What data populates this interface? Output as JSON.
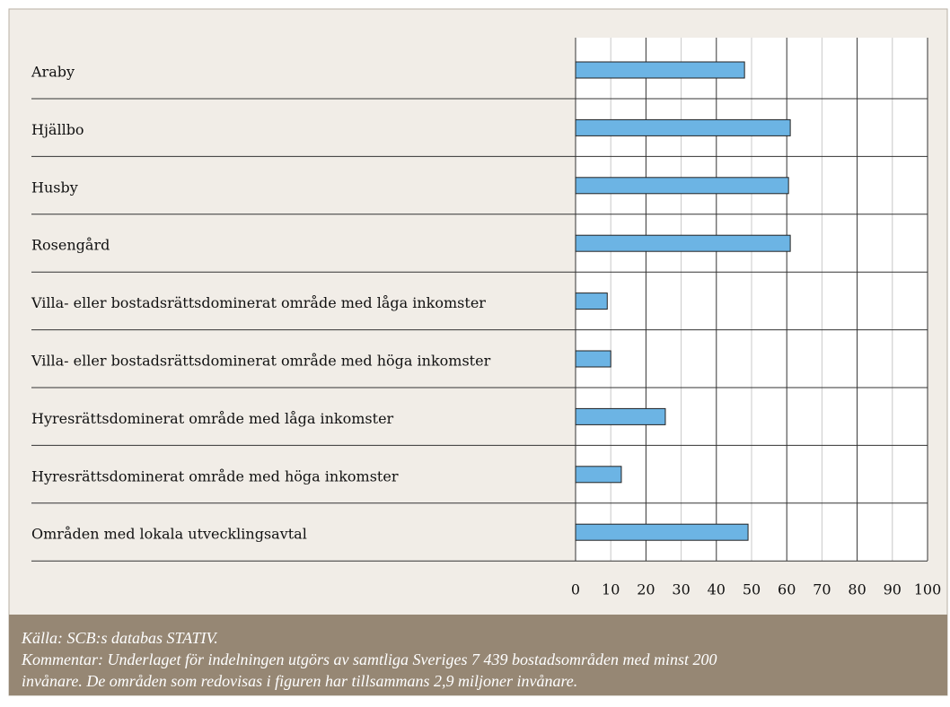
{
  "chart_data": {
    "type": "hbar",
    "categories": [
      "Araby",
      "Hjällbo",
      "Husby",
      "Rosengård",
      "Villa- eller bostadsrättsdominerat område med låga inkomster",
      "Villa- eller bostadsrättsdominerat område med höga inkomster",
      "Hyresrättsdominerat område med låga inkomster",
      "Hyresrättsdominerat område med höga inkomster",
      "Områden med lokala utvecklingsavtal"
    ],
    "values": [
      48,
      61,
      60.5,
      61,
      9,
      10,
      25.5,
      13,
      49
    ],
    "color": "#6cb4e4",
    "xlim": [
      0,
      100
    ],
    "xticks": [
      0,
      10,
      20,
      30,
      40,
      50,
      60,
      70,
      80,
      90,
      100
    ],
    "grid": true,
    "notes": [
      "Källa: SCB:s databas STATIV.",
      "Kommentar: Underlaget för indelningen utgörs av samtliga Sveriges 7 439 bostadsområden med minst 200",
      "invånare. De områden som redovisas i figuren har tillsammans 2,9 miljoner invånare."
    ]
  }
}
